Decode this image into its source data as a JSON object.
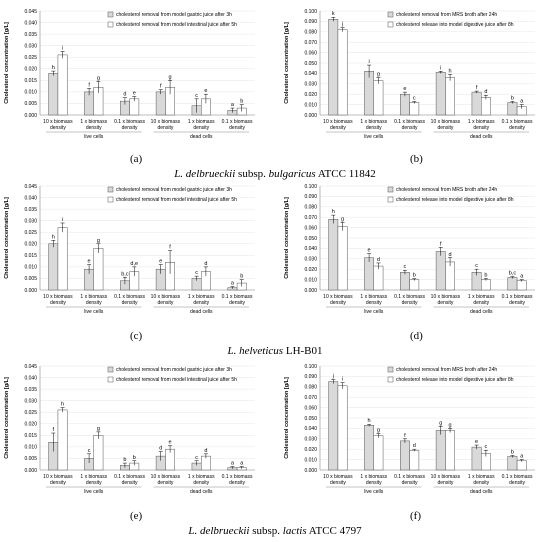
{
  "figure": {
    "captions": [
      {
        "species": "L. delbrueckii",
        "rest": "subsp.",
        "species2": "bulgaricus",
        "strain": "ATCC 11842"
      },
      {
        "species": "L. helveticus",
        "rest": "",
        "species2": "",
        "strain": "LH-B01"
      },
      {
        "species": "L. delbrueckii",
        "rest": "subsp.",
        "species2": "lactis",
        "strain": "ATCC 4797"
      }
    ]
  },
  "chart_data": [
    {
      "panel_label": "(a)",
      "type": "bar",
      "ylabel": "Cholesterol concentration [g/L]",
      "ylim": [
        0,
        0.045
      ],
      "yticks": [
        "0.000",
        "0.005",
        "0.010",
        "0.015",
        "0.020",
        "0.025",
        "0.030",
        "0.035",
        "0.040",
        "0.045"
      ],
      "categories": [
        "10 x biomass density",
        "1 x biomass density",
        "0.1 x biomass density",
        "10 x biomass density",
        "1 x biomass density",
        "0.1 x biomass density"
      ],
      "groups": [
        "live cells",
        "dead cells"
      ],
      "series": [
        {
          "name": "cholesterol removal from model gastric juice after 3h",
          "values": [
            0.018,
            0.01,
            0.006,
            0.01,
            0.004,
            0.002
          ],
          "err": [
            0.001,
            0.0015,
            0.0015,
            0.001,
            0.003,
            0.001
          ],
          "letters": [
            "h",
            "f",
            "d",
            "f",
            "c",
            "a"
          ]
        },
        {
          "name": "cholesterol removal from model intestinal juice after 5h",
          "values": [
            0.026,
            0.012,
            0.007,
            0.012,
            0.007,
            0.003
          ],
          "err": [
            0.0015,
            0.0025,
            0.001,
            0.003,
            0.002,
            0.0015
          ],
          "letters": [
            "i",
            "g",
            "e",
            "g",
            "e",
            "b"
          ]
        }
      ]
    },
    {
      "panel_label": "(b)",
      "type": "bar",
      "ylabel": "Cholesterol concentration [g/L]",
      "ylim": [
        0,
        0.1
      ],
      "yticks": [
        "0.000",
        "0.010",
        "0.020",
        "0.030",
        "0.040",
        "0.050",
        "0.060",
        "0.070",
        "0.080",
        "0.090",
        "0.100"
      ],
      "categories": [
        "10 x biomass density",
        "1 x biomass density",
        "0.1 x biomass density",
        "10 x biomass density",
        "1 x biomass density",
        "0.1 x biomass density"
      ],
      "groups": [
        "live cells",
        "dead cells"
      ],
      "series": [
        {
          "name": "cholesterol removal from MRS broth after 24h",
          "values": [
            0.092,
            0.042,
            0.02,
            0.041,
            0.022,
            0.012
          ],
          "err": [
            0.002,
            0.006,
            0.002,
            0.001,
            0.001,
            0.001
          ],
          "letters": [
            "k",
            "i",
            "e",
            "i",
            "f",
            "b"
          ]
        },
        {
          "name": "cholesterol release into model digestive juice after 8h",
          "values": [
            0.082,
            0.033,
            0.012,
            0.036,
            0.017,
            0.008
          ],
          "err": [
            0.002,
            0.003,
            0.001,
            0.003,
            0.002,
            0.002
          ],
          "letters": [
            "j",
            "g",
            "c",
            "h",
            "d",
            "a"
          ]
        }
      ]
    },
    {
      "panel_label": "(c)",
      "type": "bar",
      "ylabel": "Cholesterol concentration [g/L]",
      "ylim": [
        0,
        0.045
      ],
      "yticks": [
        "0.000",
        "0.005",
        "0.010",
        "0.015",
        "0.020",
        "0.025",
        "0.030",
        "0.035",
        "0.040",
        "0.045"
      ],
      "categories": [
        "10 x biomass density",
        "1 x biomass density",
        "0.1 x biomass density",
        "10 x biomass density",
        "1 x biomass density",
        "0.1 x biomass density"
      ],
      "groups": [
        "live cells",
        "dead cells"
      ],
      "series": [
        {
          "name": "cholesterol removal from model gastric juice after 3h",
          "values": [
            0.02,
            0.009,
            0.004,
            0.009,
            0.005,
            0.001
          ],
          "err": [
            0.0015,
            0.002,
            0.0015,
            0.002,
            0.001,
            0.0005
          ],
          "letters": [
            "h",
            "e",
            "b,c",
            "e",
            "c",
            "a"
          ]
        },
        {
          "name": "cholesterol removal from model intestinal juice after 5h",
          "values": [
            0.027,
            0.018,
            0.008,
            0.012,
            0.008,
            0.003
          ],
          "err": [
            0.002,
            0.002,
            0.002,
            0.005,
            0.002,
            0.0015
          ],
          "letters": [
            "i",
            "g",
            "d,e",
            "f",
            "d",
            "b"
          ]
        }
      ]
    },
    {
      "panel_label": "(d)",
      "type": "bar",
      "ylabel": "Cholesterol concentration [g/L]",
      "ylim": [
        0,
        0.1
      ],
      "yticks": [
        "0.000",
        "0.010",
        "0.020",
        "0.030",
        "0.040",
        "0.050",
        "0.060",
        "0.070",
        "0.080",
        "0.090",
        "0.100"
      ],
      "categories": [
        "10 x biomass density",
        "1 x biomass density",
        "0.1 x biomass density",
        "10 x biomass density",
        "1 x biomass density",
        "0.1 x biomass density"
      ],
      "groups": [
        "live cells",
        "dead cells"
      ],
      "series": [
        {
          "name": "cholesterol removal from MRS broth after 24h",
          "values": [
            0.068,
            0.031,
            0.017,
            0.037,
            0.017,
            0.012
          ],
          "err": [
            0.004,
            0.004,
            0.002,
            0.004,
            0.003,
            0.001
          ],
          "letters": [
            "h",
            "e",
            "c",
            "f",
            "c",
            "b,c"
          ]
        },
        {
          "name": "cholesterol release into model digestive juice after 8h",
          "values": [
            0.061,
            0.023,
            0.01,
            0.027,
            0.01,
            0.009
          ],
          "err": [
            0.004,
            0.003,
            0.001,
            0.004,
            0.001,
            0.001
          ],
          "letters": [
            "g",
            "d",
            "b",
            "d",
            "b",
            "a"
          ]
        }
      ]
    },
    {
      "panel_label": "(e)",
      "type": "bar",
      "ylabel": "Cholesterol concentration [g/L]",
      "ylim": [
        0,
        0.045
      ],
      "yticks": [
        "0.000",
        "0.005",
        "0.010",
        "0.015",
        "0.020",
        "0.025",
        "0.030",
        "0.035",
        "0.040",
        "0.045"
      ],
      "categories": [
        "10 x biomass density",
        "1 x biomass density",
        "0.1 x biomass density",
        "10 x biomass density",
        "1 x biomass density",
        "0.1 x biomass density"
      ],
      "groups": [
        "live cells",
        "dead cells"
      ],
      "series": [
        {
          "name": "cholesterol removal from model gastric juice after 3h",
          "values": [
            0.012,
            0.005,
            0.002,
            0.006,
            0.003,
            0.001
          ],
          "err": [
            0.004,
            0.002,
            0.001,
            0.002,
            0.001,
            0.0005
          ],
          "letters": [
            "f",
            "c",
            "b",
            "d",
            "c",
            "a"
          ]
        },
        {
          "name": "cholesterol removal from model intestinal juice after 5h",
          "values": [
            0.026,
            0.015,
            0.003,
            0.009,
            0.006,
            0.001
          ],
          "err": [
            0.001,
            0.0015,
            0.001,
            0.0015,
            0.001,
            0.0005
          ],
          "letters": [
            "h",
            "g",
            "b",
            "e",
            "d",
            "a"
          ]
        }
      ]
    },
    {
      "panel_label": "(f)",
      "type": "bar",
      "ylabel": "Cholesterol concentration [g/L]",
      "ylim": [
        0,
        0.1
      ],
      "yticks": [
        "0.000",
        "0.010",
        "0.020",
        "0.030",
        "0.040",
        "0.050",
        "0.060",
        "0.070",
        "0.080",
        "0.090",
        "0.100"
      ],
      "categories": [
        "10 x biomass density",
        "1 x biomass density",
        "0.1 x biomass density",
        "10 x biomass density",
        "1 x biomass density",
        "0.1 x biomass density"
      ],
      "groups": [
        "live cells",
        "dead cells"
      ],
      "series": [
        {
          "name": "cholesterol removal from MRS broth after 24h",
          "values": [
            0.085,
            0.043,
            0.028,
            0.038,
            0.022,
            0.013
          ],
          "err": [
            0.002,
            0.001,
            0.002,
            0.004,
            0.002,
            0.001
          ],
          "letters": [
            "j",
            "h",
            "f",
            "g",
            "e",
            "b"
          ]
        },
        {
          "name": "cholesterol release into model digestive juice after 8h",
          "values": [
            0.081,
            0.033,
            0.019,
            0.038,
            0.016,
            0.009
          ],
          "err": [
            0.003,
            0.002,
            0.001,
            0.002,
            0.003,
            0.001
          ],
          "letters": [
            "i",
            "g",
            "d",
            "g",
            "c",
            "a"
          ]
        }
      ]
    }
  ]
}
